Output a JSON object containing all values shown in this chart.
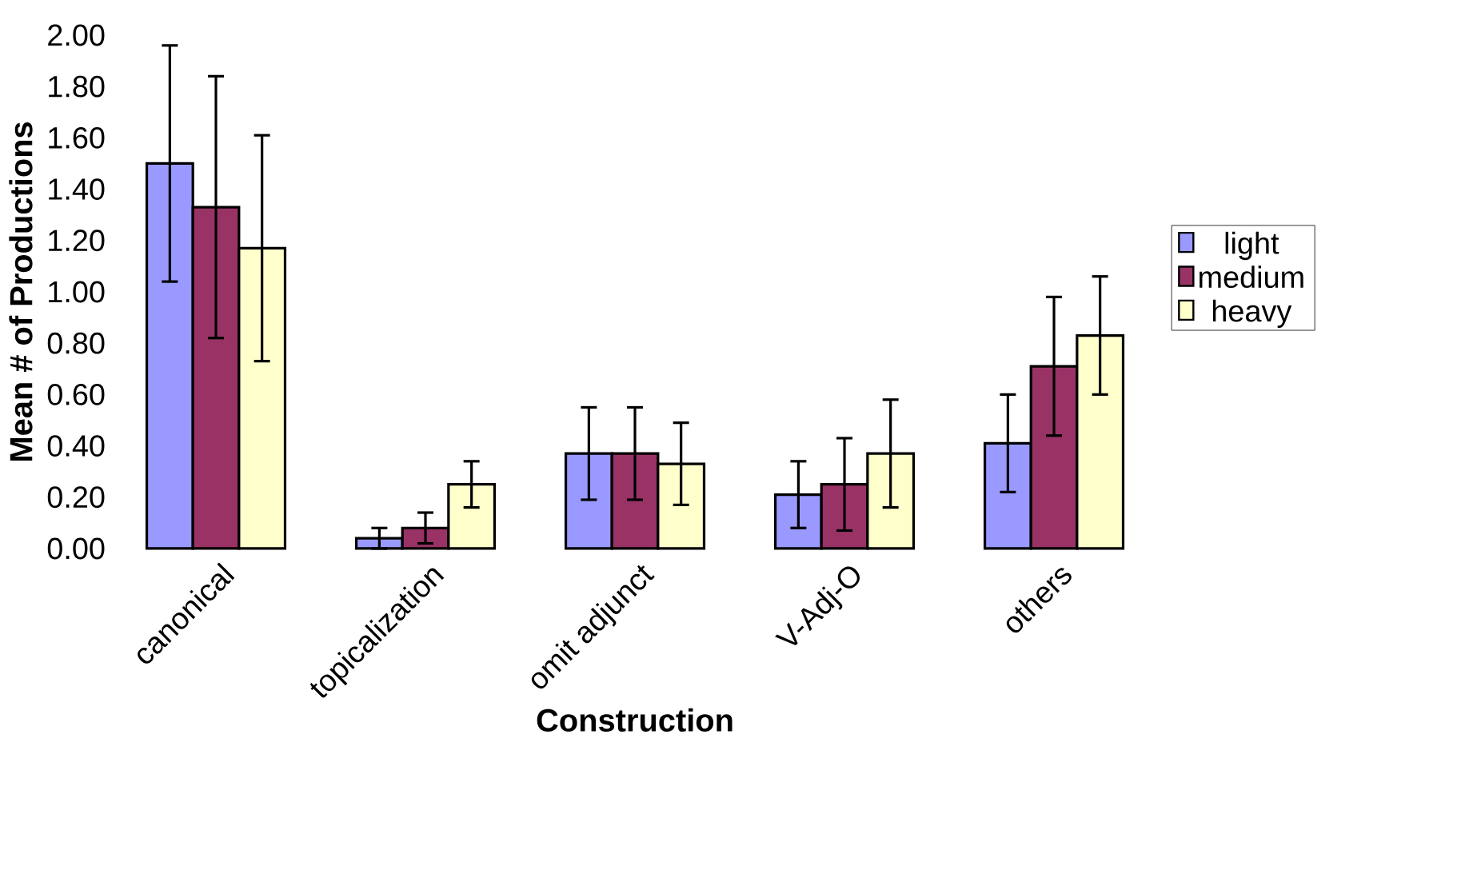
{
  "chart_data": {
    "type": "bar",
    "xlabel": "Construction",
    "ylabel": "Mean # of Productions",
    "categories": [
      "canonical",
      "topicalization",
      "omit adjunct",
      "V-Adj-O",
      "others"
    ],
    "series": [
      {
        "name": "light",
        "color": "#9999ff",
        "values": [
          1.5,
          0.04,
          0.37,
          0.21,
          0.41
        ],
        "errors": [
          0.46,
          0.04,
          0.18,
          0.13,
          0.19
        ]
      },
      {
        "name": "medium",
        "color": "#993366",
        "values": [
          1.33,
          0.08,
          0.37,
          0.25,
          0.71
        ],
        "errors": [
          0.51,
          0.06,
          0.18,
          0.18,
          0.27
        ]
      },
      {
        "name": "heavy",
        "color": "#ffffcc",
        "values": [
          1.17,
          0.25,
          0.33,
          0.37,
          0.83
        ],
        "errors": [
          0.44,
          0.09,
          0.16,
          0.21,
          0.23
        ]
      }
    ],
    "ylim": [
      0,
      2
    ],
    "yticks": [
      {
        "value": 0,
        "label": "0.00"
      },
      {
        "value": 0.2,
        "label": "0.20"
      },
      {
        "value": 0.4,
        "label": "0.40"
      },
      {
        "value": 0.6,
        "label": "0.60"
      },
      {
        "value": 0.8,
        "label": "0.80"
      },
      {
        "value": 1.0,
        "label": "1.00"
      },
      {
        "value": 1.2,
        "label": "1.20"
      },
      {
        "value": 1.4,
        "label": "1.40"
      },
      {
        "value": 1.6,
        "label": "1.60"
      },
      {
        "value": 1.8,
        "label": "1.80"
      },
      {
        "value": 2.0,
        "label": "2.00"
      }
    ],
    "legend": "right",
    "grid": false
  }
}
